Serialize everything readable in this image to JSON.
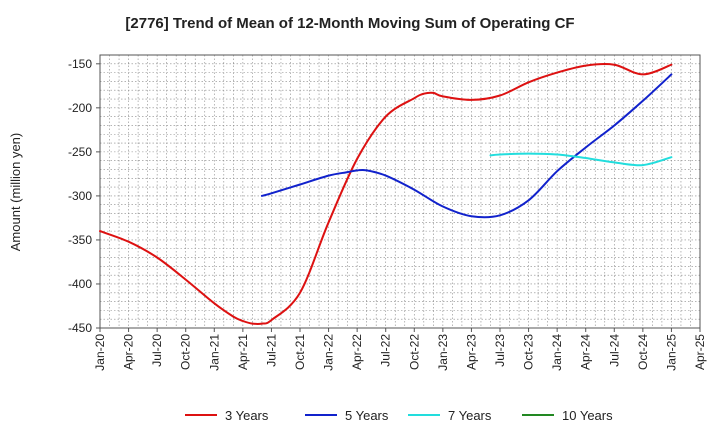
{
  "chart_data": {
    "type": "line",
    "title": "[2776]  Trend of Mean of 12-Month Moving Sum of Operating CF",
    "xlabel": "",
    "ylabel": "Amount (million yen)",
    "ylim": [
      -450,
      -140
    ],
    "yticks": [
      -150,
      -200,
      -250,
      -300,
      -350,
      -400,
      -450
    ],
    "xticks": [
      "Jan-20",
      "Apr-20",
      "Jul-20",
      "Oct-20",
      "Jan-21",
      "Apr-21",
      "Jul-21",
      "Oct-21",
      "Jan-22",
      "Apr-22",
      "Jul-22",
      "Oct-22",
      "Jan-23",
      "Apr-23",
      "Jul-23",
      "Oct-23",
      "Jan-24",
      "Apr-24",
      "Jul-24",
      "Oct-24",
      "Jan-25",
      "Apr-25"
    ],
    "grid": true,
    "legend_position": "bottom",
    "series": [
      {
        "name": "3 Years",
        "color": "#dd1111",
        "x": [
          "Jan-20",
          "Apr-20",
          "Jul-20",
          "Oct-20",
          "Jan-21",
          "Mar-21",
          "Apr-21",
          "May-21",
          "Jun-21",
          "Jul-21",
          "Oct-21",
          "Jan-22",
          "Apr-22",
          "Jul-22",
          "Oct-22",
          "Nov-22",
          "Dec-22",
          "Jan-23",
          "Apr-23",
          "Jul-23",
          "Oct-23",
          "Jan-24",
          "Apr-24",
          "Jul-24",
          "Oct-24",
          "Jan-25"
        ],
        "values": [
          -340,
          -352,
          -370,
          -395,
          -422,
          -437,
          -442,
          -445,
          -445,
          -441,
          -410,
          -330,
          -258,
          -210,
          -189,
          -184,
          -183,
          -187,
          -191,
          -186,
          -171,
          -160,
          -152,
          -151,
          -162,
          -151
        ]
      },
      {
        "name": "5 Years",
        "color": "#1122cc",
        "x": [
          "Jun-21",
          "Jul-21",
          "Oct-21",
          "Jan-22",
          "Mar-22",
          "Apr-22",
          "May-22",
          "Jul-22",
          "Oct-22",
          "Jan-23",
          "Apr-23",
          "Jul-23",
          "Oct-23",
          "Jan-24",
          "Apr-24",
          "Jul-24",
          "Oct-24",
          "Jan-25"
        ],
        "values": [
          -300,
          -297,
          -287,
          -277,
          -273,
          -271,
          -271,
          -277,
          -293,
          -312,
          -323,
          -322,
          -305,
          -272,
          -245,
          -220,
          -192,
          -162
        ]
      },
      {
        "name": "7 Years",
        "color": "#22dddd",
        "x": [
          "Jun-23",
          "Jul-23",
          "Oct-23",
          "Jan-24",
          "Apr-24",
          "Jul-24",
          "Oct-24",
          "Jan-25"
        ],
        "values": [
          -254,
          -253,
          -252,
          -253,
          -257,
          -262,
          -265,
          -256
        ]
      },
      {
        "name": "10 Years",
        "color": "#228822",
        "x": [],
        "values": []
      }
    ]
  }
}
